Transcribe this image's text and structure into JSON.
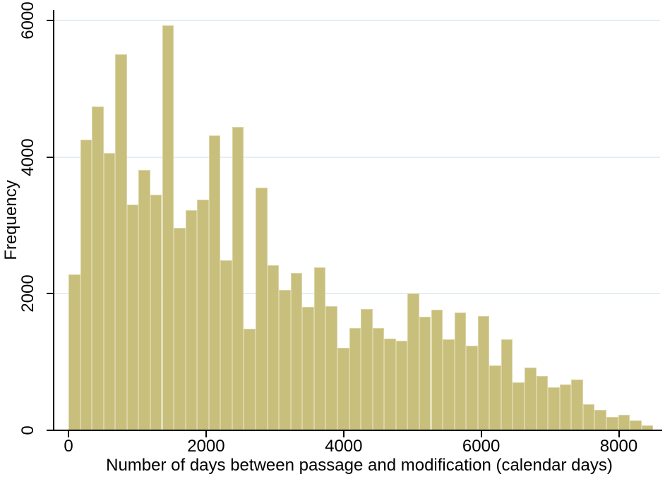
{
  "figure": {
    "background": "#ffffff"
  },
  "chart_data": {
    "type": "bar",
    "subtype": "histogram",
    "title": "",
    "xlabel": "Number of days between passage and modification (calendar days)",
    "ylabel": "Frequency",
    "x_ticks": [
      0,
      2000,
      4000,
      6000,
      8000
    ],
    "y_ticks": [
      0,
      2000,
      4000,
      6000
    ],
    "xlim": [
      0,
      8630
    ],
    "ylim": [
      0,
      6160
    ],
    "grid": "horizontal-light-blue",
    "legend": "none",
    "bin_width_days": 170,
    "bin_starts": [
      0,
      170,
      340,
      510,
      680,
      850,
      1020,
      1190,
      1360,
      1530,
      1700,
      1870,
      2040,
      2210,
      2380,
      2550,
      2720,
      2890,
      3060,
      3230,
      3400,
      3570,
      3740,
      3910,
      4080,
      4250,
      4420,
      4590,
      4760,
      4930,
      5100,
      5270,
      5440,
      5610,
      5780,
      5950,
      6120,
      6290,
      6460,
      6630,
      6800,
      6970,
      7140,
      7310,
      7480,
      7650,
      7820,
      7990,
      8160,
      8330
    ],
    "frequencies": [
      2280,
      4250,
      4740,
      4060,
      5500,
      3300,
      3810,
      3450,
      5930,
      2960,
      3220,
      3380,
      4320,
      2490,
      4440,
      1490,
      3550,
      2420,
      2050,
      2300,
      1810,
      2390,
      1820,
      1210,
      1500,
      1780,
      1500,
      1340,
      1310,
      2000,
      1660,
      1770,
      1330,
      1720,
      1240,
      1670,
      950,
      1330,
      705,
      920,
      800,
      625,
      670,
      740,
      380,
      300,
      195,
      225,
      145,
      75
    ],
    "colors": {
      "bar_fill": "#c8bf7c",
      "bar_border": "#dbd4a4",
      "gridline": "#e4eef3",
      "axis": "#000000",
      "text": "#000000"
    }
  }
}
